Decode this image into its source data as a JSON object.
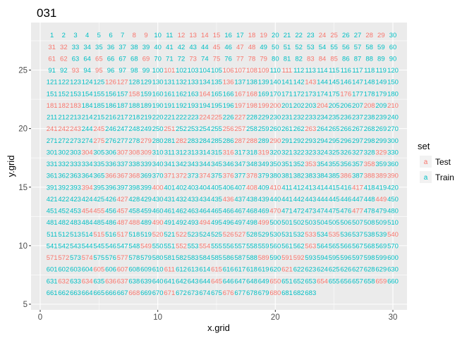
{
  "chart_data": {
    "type": "scatter",
    "title": "031",
    "xlabel": "x.grid",
    "ylabel": "y.grid",
    "xlim": [
      0,
      31
    ],
    "ylim": [
      5,
      29
    ],
    "x_ticks": [
      0,
      10,
      20,
      30
    ],
    "y_ticks": [
      5,
      10,
      15,
      20,
      25
    ],
    "grid": true,
    "marks": "numeric text labels",
    "legend": {
      "title": "set",
      "position": "right",
      "entries": [
        {
          "label": "Test",
          "color": "#F8766D",
          "key_glyph": "a"
        },
        {
          "label": "Train",
          "color": "#00BFC4",
          "key_glyph": "a"
        }
      ]
    },
    "grid_layout": {
      "columns": 30,
      "first_label": 1,
      "last_label": 683,
      "first_row_y": 28,
      "row_step": -1
    },
    "test_labels": [
      8,
      9,
      12,
      13,
      14,
      15,
      18,
      19,
      24,
      25,
      28,
      29,
      31,
      32,
      45,
      47,
      48,
      61,
      62,
      65,
      69,
      73,
      75,
      77,
      78,
      79,
      83,
      84,
      85,
      93,
      95,
      101,
      106,
      107,
      108,
      109,
      111,
      126,
      127,
      136,
      143,
      158,
      164,
      167,
      168,
      176,
      181,
      182,
      183,
      197,
      198,
      199,
      200,
      204,
      208,
      210,
      224,
      225,
      227,
      241,
      242,
      243,
      245,
      251,
      256,
      257,
      263,
      275,
      279,
      282,
      287,
      288,
      290,
      304,
      307,
      308,
      309,
      316,
      319,
      329,
      353,
      358,
      367,
      371,
      386,
      388,
      366,
      368,
      372,
      374,
      376,
      378,
      389,
      390,
      394,
      400,
      408,
      410,
      417,
      427,
      436,
      449,
      454,
      455,
      457,
      470,
      477,
      487,
      488,
      490,
      494,
      499,
      515,
      517,
      520,
      522,
      526,
      527,
      533,
      535,
      540,
      549,
      552,
      554,
      563,
      571,
      572,
      574,
      577,
      589,
      591,
      592,
      605,
      607,
      611,
      615,
      621,
      632,
      634,
      636,
      637,
      645,
      650,
      654,
      659,
      668,
      671,
      676,
      680
    ]
  }
}
